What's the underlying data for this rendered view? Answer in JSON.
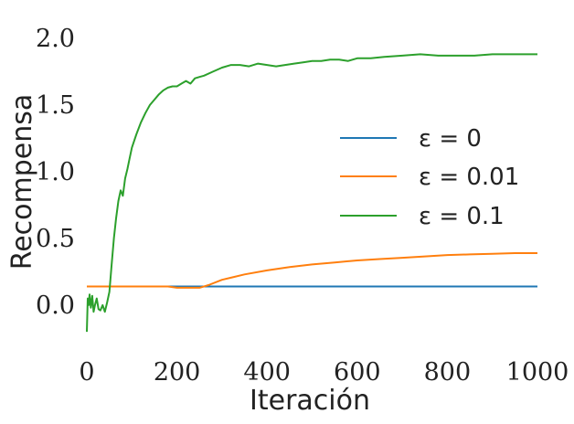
{
  "chart_data": {
    "type": "line",
    "xlabel": "Iteración",
    "ylabel": "Recompensa",
    "xlim": [
      0,
      1000
    ],
    "ylim": [
      -0.35,
      2.15
    ],
    "xticks": [
      0,
      200,
      400,
      600,
      800,
      1000
    ],
    "xtick_labels": [
      "0",
      "200",
      "400",
      "600",
      "800",
      "1000"
    ],
    "yticks": [
      0.0,
      0.5,
      1.0,
      1.5,
      2.0
    ],
    "ytick_labels": [
      "0.0",
      "0.5",
      "1.0",
      "1.5",
      "2.0"
    ],
    "grid": false,
    "legend_position": "center-right",
    "series": [
      {
        "name": "ε = 0",
        "color": "#1f77b4",
        "x": [
          0,
          200,
          300,
          400,
          500,
          600,
          700,
          800,
          900,
          1000
        ],
        "y": [
          0.14,
          0.14,
          0.14,
          0.14,
          0.14,
          0.14,
          0.14,
          0.14,
          0.14,
          0.14
        ]
      },
      {
        "name": "ε = 0.01",
        "color": "#ff7f0e",
        "x": [
          0,
          50,
          100,
          150,
          180,
          200,
          230,
          250,
          270,
          300,
          350,
          400,
          450,
          500,
          550,
          600,
          650,
          700,
          750,
          800,
          850,
          900,
          950,
          1000
        ],
        "y": [
          0.14,
          0.14,
          0.14,
          0.14,
          0.14,
          0.13,
          0.13,
          0.13,
          0.15,
          0.19,
          0.23,
          0.26,
          0.285,
          0.305,
          0.32,
          0.335,
          0.345,
          0.355,
          0.365,
          0.375,
          0.38,
          0.385,
          0.39,
          0.39
        ]
      },
      {
        "name": "ε = 0.1",
        "color": "#2ca02c",
        "x": [
          0,
          2,
          4,
          6,
          9,
          12,
          15,
          18,
          22,
          26,
          30,
          35,
          40,
          45,
          50,
          55,
          60,
          65,
          70,
          75,
          80,
          85,
          90,
          95,
          100,
          110,
          120,
          130,
          140,
          150,
          160,
          170,
          180,
          190,
          200,
          210,
          220,
          230,
          240,
          250,
          260,
          280,
          300,
          320,
          340,
          360,
          380,
          400,
          420,
          440,
          460,
          480,
          500,
          520,
          540,
          560,
          580,
          600,
          630,
          660,
          700,
          740,
          780,
          820,
          860,
          900,
          940,
          980,
          1000
        ],
        "y": [
          -0.2,
          0.05,
          0.0,
          0.08,
          -0.02,
          0.07,
          -0.05,
          0.0,
          0.05,
          -0.03,
          -0.04,
          0.0,
          -0.05,
          0.02,
          0.1,
          0.3,
          0.5,
          0.65,
          0.78,
          0.86,
          0.82,
          0.95,
          1.02,
          1.1,
          1.18,
          1.28,
          1.37,
          1.44,
          1.5,
          1.54,
          1.58,
          1.61,
          1.63,
          1.64,
          1.64,
          1.66,
          1.68,
          1.66,
          1.7,
          1.71,
          1.72,
          1.75,
          1.78,
          1.8,
          1.8,
          1.79,
          1.81,
          1.8,
          1.79,
          1.8,
          1.81,
          1.82,
          1.83,
          1.83,
          1.84,
          1.84,
          1.83,
          1.85,
          1.85,
          1.86,
          1.87,
          1.88,
          1.87,
          1.87,
          1.87,
          1.88,
          1.88,
          1.88,
          1.88
        ]
      }
    ]
  }
}
